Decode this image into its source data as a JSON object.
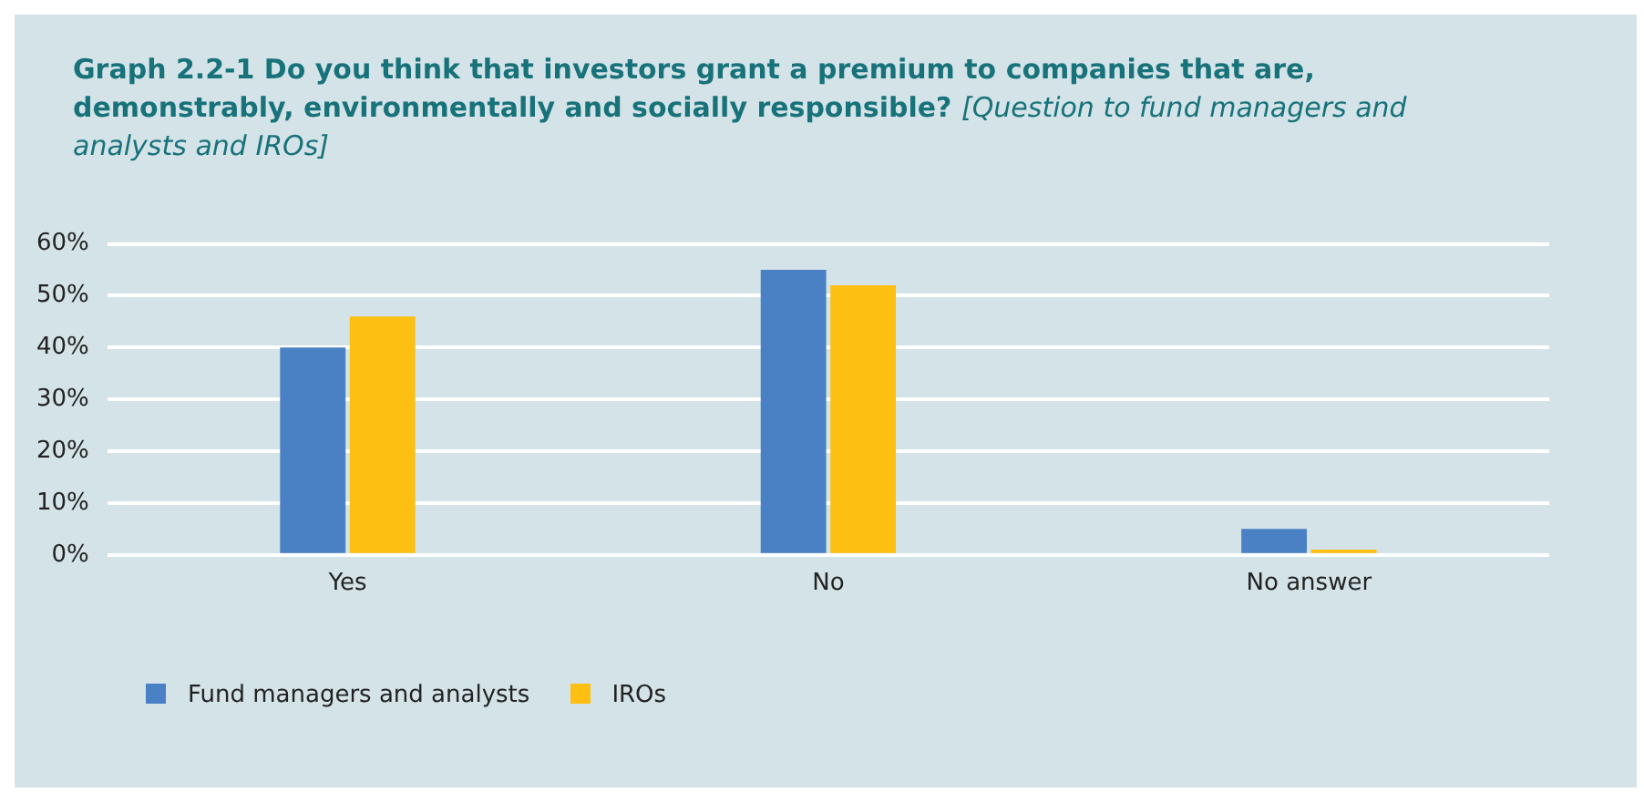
{
  "chart_data": {
    "type": "bar",
    "title": "Graph 2.2-1 Do you think that investors grant a premium to companies that are, demonstrably, environmentally and socially responsible?",
    "subtitle": "[Question to fund managers and analysts and IROs]",
    "categories": [
      "Yes",
      "No",
      "No answer"
    ],
    "series": [
      {
        "name": "Fund managers and analysts",
        "color": "#4a81c4",
        "values": [
          40,
          55,
          5
        ]
      },
      {
        "name": "IROs",
        "color": "#fdbf12",
        "values": [
          46,
          52,
          1
        ]
      }
    ],
    "ylim": [
      0,
      60
    ],
    "yticks": [
      {
        "value": 0,
        "label": "0%"
      },
      {
        "value": 10,
        "label": "10%"
      },
      {
        "value": 20,
        "label": "20%"
      },
      {
        "value": 30,
        "label": "30%"
      },
      {
        "value": 40,
        "label": "40%"
      },
      {
        "value": 50,
        "label": "50%"
      },
      {
        "value": 60,
        "label": "60%"
      }
    ],
    "grid": "y",
    "legend": "bottom left"
  }
}
